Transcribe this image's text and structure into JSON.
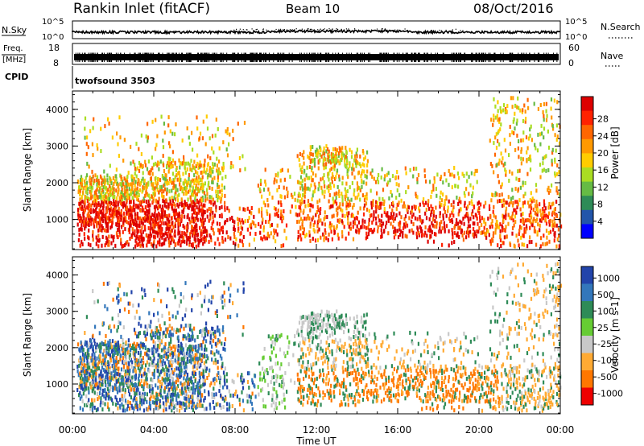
{
  "header": {
    "station": "Rankin Inlet (fitACF)",
    "beam": "Beam 10",
    "date": "08/Oct/2016"
  },
  "top_panels": {
    "nsky_label": "N.Sky",
    "nsky_ticks": [
      "10^5",
      "10^0"
    ],
    "nsearch_label": "N.Search",
    "nsearch_ticks": [
      "10^5",
      "10^0"
    ],
    "freq_label": "Freq.",
    "freq_unit": "[MHz]",
    "freq_ticks": [
      "18",
      "8"
    ],
    "nave_label": "Nave",
    "nave_ticks": [
      "60",
      "0"
    ],
    "cpid_label": "CPID",
    "cpid_value": "twofsound 3503"
  },
  "chart_data": [
    {
      "type": "heatmap",
      "quantity": "Power",
      "ylabel": "Slant Range [km]",
      "ylim": [
        180,
        4500
      ],
      "yticks": [
        "1000",
        "2000",
        "3000",
        "4000"
      ],
      "xlim": [
        "00:00",
        "24:00"
      ],
      "colorbar_label": "Power [dB]",
      "colorbar_ticks": [
        "4",
        "8",
        "12",
        "16",
        "20",
        "24",
        "28"
      ],
      "colorscale": [
        "#0000ff",
        "#2255aa",
        "#2e8b57",
        "#66bb44",
        "#aadd22",
        "#ffcc00",
        "#ff9900",
        "#ff6600",
        "#ff2200",
        "#dd0000"
      ]
    },
    {
      "type": "heatmap",
      "quantity": "Velocity",
      "ylabel": "Slant Range [km]",
      "xlabel": "Time UT",
      "ylim": [
        180,
        4500
      ],
      "yticks": [
        "1000",
        "2000",
        "3000",
        "4000"
      ],
      "xticks": [
        "00:00",
        "04:00",
        "08:00",
        "12:00",
        "16:00",
        "20:00",
        "00:00"
      ],
      "colorbar_label": "Velocity [m s-1]",
      "colorbar_ticks": [
        "1000",
        "500",
        "100",
        "25",
        "-25",
        "-100",
        "-500",
        "-1000"
      ],
      "colorscale": [
        "#2244aa",
        "#3377bb",
        "#2e8b57",
        "#66cc33",
        "#c8c8c8",
        "#ffaa33",
        "#ff7700",
        "#ee0000"
      ]
    }
  ]
}
